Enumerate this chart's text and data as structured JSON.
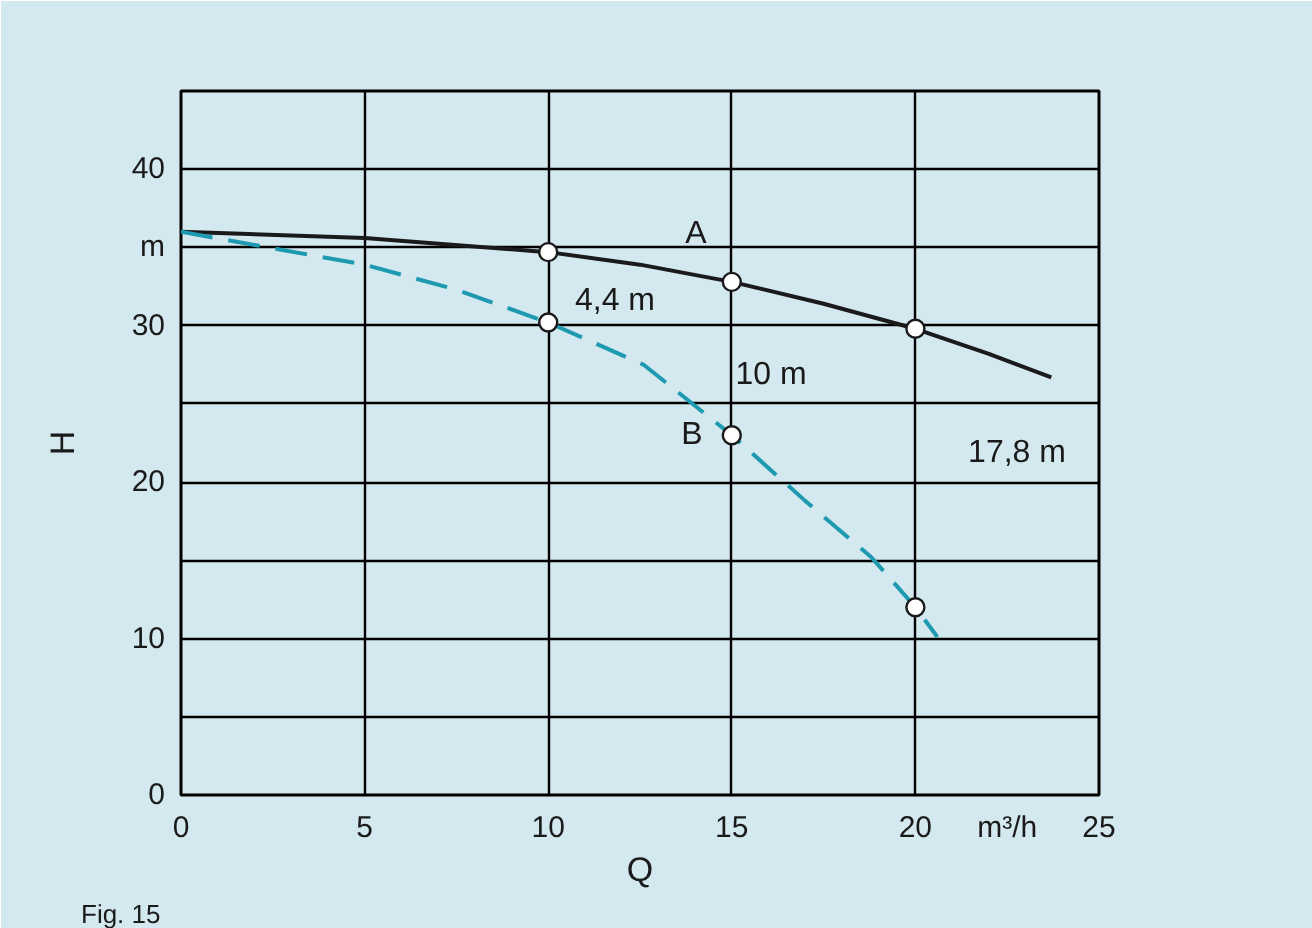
{
  "chart_data": {
    "type": "line",
    "xlabel": "Q",
    "ylabel": "H",
    "x": [
      0,
      5,
      7.5,
      10,
      12.6,
      15,
      17,
      18.8,
      20,
      20.6
    ],
    "series": [
      {
        "name": "A",
        "color": "#1a1a1a",
        "line_style": "solid",
        "x": [
          0,
          5,
          10,
          12.5,
          15,
          17.5,
          20,
          22,
          23.7
        ],
        "values": [
          36,
          35.6,
          34.7,
          33.9,
          32.8,
          31.4,
          29.8,
          28.2,
          26.7
        ]
      },
      {
        "name": "B",
        "color": "#1e9ab0",
        "line_style": "dashed",
        "values": [
          36,
          33.9,
          32.3,
          30.2,
          27.5,
          23,
          18.8,
          15.2,
          12,
          10.1
        ]
      },
      {
        "type": "scatter",
        "color": "#1a1a1a",
        "marker": "circle",
        "x": [
          10,
          15,
          20,
          10,
          15,
          20
        ],
        "values": [
          34.7,
          32.8,
          29.8,
          30.2,
          23,
          12
        ]
      }
    ],
    "xlim": [
      0,
      25
    ],
    "ylim": [
      0,
      45
    ],
    "xticks": [
      0,
      5,
      10,
      15,
      20,
      25
    ],
    "yticks": [
      0,
      {
        "value": 5,
        "label": null
      },
      10,
      {
        "value": 15,
        "label": null
      },
      20,
      {
        "value": 25,
        "label": null
      },
      30,
      {
        "value": 35,
        "label": "m"
      },
      40,
      {
        "value": 45,
        "label": null
      }
    ],
    "grid": true,
    "annotations": [
      "4,4 m",
      "10 m",
      "17,8 m",
      "m³/h",
      "Fig. 15"
    ]
  }
}
